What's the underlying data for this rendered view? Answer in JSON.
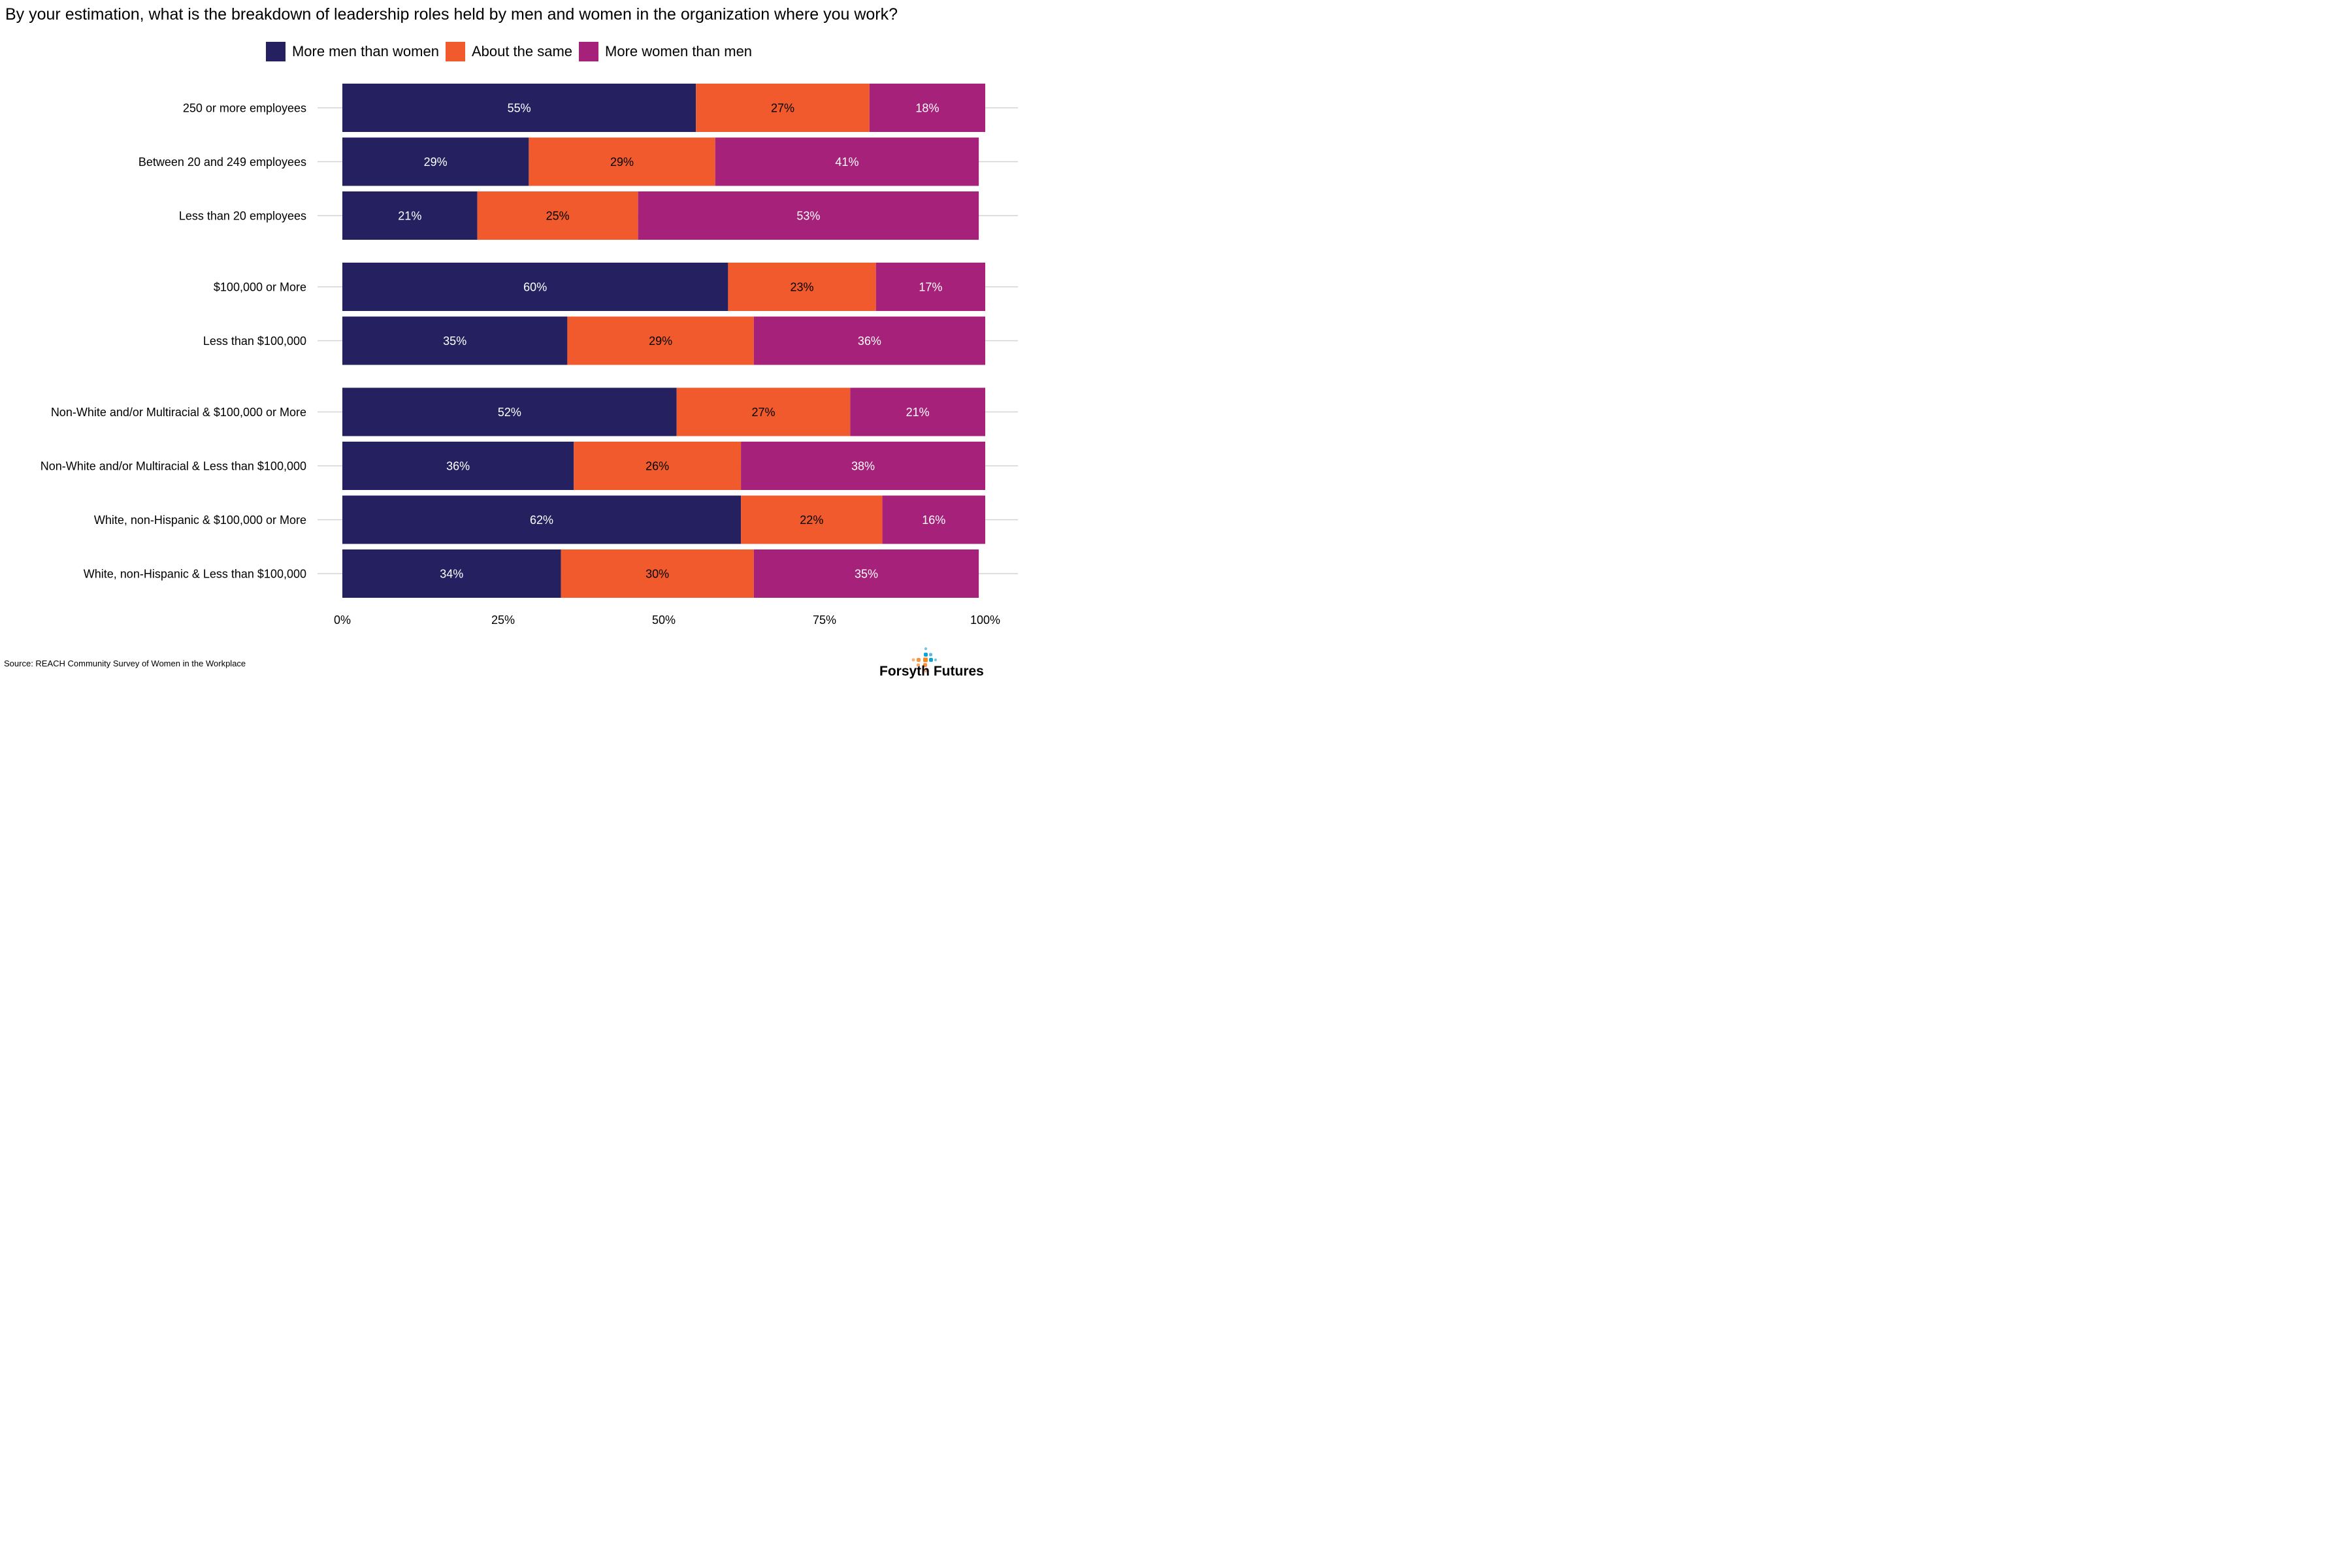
{
  "chart_data": {
    "type": "bar",
    "orientation": "horizontal",
    "stacked": true,
    "title": "By your estimation, what is the breakdown of leadership roles held by men and women in the organization where you work?",
    "xlabel": "",
    "ylabel": "",
    "xlim": [
      0,
      100
    ],
    "x_ticks": [
      "0%",
      "25%",
      "50%",
      "75%",
      "100%"
    ],
    "x_tick_values": [
      0,
      25,
      50,
      75,
      100
    ],
    "grid": true,
    "legend_position": "top-center",
    "groups": [
      [
        "250 or more employees",
        "Between 20 and 249 employees",
        "Less than 20 employees"
      ],
      [
        "$100,000 or More",
        "Less than $100,000"
      ],
      [
        "Non-White and/or Multiracial & $100,000 or More",
        "Non-White and/or Multiracial & Less than $100,000",
        "White, non-Hispanic & $100,000 or More",
        "White, non-Hispanic & Less than $100,000"
      ]
    ],
    "categories": [
      "250 or more employees",
      "Between 20 and 249 employees",
      "Less than 20 employees",
      "$100,000 or More",
      "Less than $100,000",
      "Non-White and/or Multiracial & $100,000 or More",
      "Non-White and/or Multiracial & Less than $100,000",
      "White, non-Hispanic & $100,000 or More",
      "White, non-Hispanic & Less than $100,000"
    ],
    "series": [
      {
        "name": "More men than women",
        "color": "#252161",
        "label_color": "#ffffff",
        "values": [
          55,
          29,
          21,
          60,
          35,
          52,
          36,
          62,
          34
        ]
      },
      {
        "name": "About the same",
        "color": "#f05a2c",
        "label_color": "#000000",
        "values": [
          27,
          29,
          25,
          23,
          29,
          27,
          26,
          22,
          30
        ]
      },
      {
        "name": "More women than men",
        "color": "#a6227a",
        "label_color": "#ffffff",
        "values": [
          18,
          41,
          53,
          17,
          36,
          21,
          38,
          16,
          35
        ]
      }
    ]
  },
  "header": {
    "title": "By your estimation, what is the breakdown of leadership roles held by men and women in the organization where you work?"
  },
  "legend": {
    "items": [
      {
        "label": "More men than women",
        "color": "#252161"
      },
      {
        "label": "About the same",
        "color": "#f05a2c"
      },
      {
        "label": "More women than men",
        "color": "#a6227a"
      }
    ]
  },
  "footer": {
    "source": "Source: REACH Community Survey of Women in the Workplace",
    "logo_text": "Forsyth Futures"
  }
}
